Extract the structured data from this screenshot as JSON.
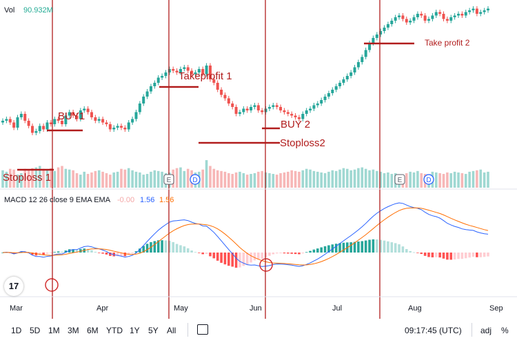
{
  "header": {
    "vol_label": "Vol",
    "vol_value": "90.932M",
    "macd_label": "MACD 12 26 close 9 EMA EMA",
    "macd_hist": "-0.00",
    "macd_line": "1.56",
    "macd_signal": "1.56"
  },
  "logo": "17",
  "bottom_bar": {
    "ranges": [
      "1D",
      "5D",
      "1M",
      "3M",
      "6M",
      "YTD",
      "1Y",
      "5Y",
      "All"
    ],
    "time": "09:17:45 (UTC)",
    "adj": "adj",
    "percent": "%"
  },
  "annotations": {
    "buy1": "BUY1",
    "stoploss1": "Stoploss 1",
    "takeprofit1": "Takeprofit 1",
    "buy2": "BUY 2",
    "stoploss2": "Stoploss2",
    "takeprofit2": "Take profit 2"
  },
  "event_markers": [
    "E",
    "D",
    "E",
    "D"
  ],
  "colors": {
    "up": "#26a69a",
    "down": "#ef5350",
    "annotation": "#b11c1c",
    "macd_line": "#2962ff",
    "signal_line": "#ff6d00"
  },
  "chart_data": {
    "type": "line",
    "x_axis_months": [
      "Mar",
      "Apr",
      "May",
      "Jun",
      "Jul",
      "Aug",
      "Sep"
    ],
    "price_series": [
      30,
      31,
      29,
      26,
      32,
      34,
      30,
      27,
      23,
      24,
      27,
      25,
      29,
      28,
      31,
      30,
      28,
      33,
      35,
      33,
      31,
      36,
      37,
      35,
      32,
      30,
      31,
      29,
      28,
      25,
      26,
      27,
      26,
      25,
      29,
      31,
      35,
      40,
      44,
      47,
      50,
      52,
      55,
      56,
      58,
      60,
      59,
      58,
      60,
      61,
      59,
      57,
      58,
      60,
      57,
      62,
      54,
      52,
      48,
      45,
      43,
      40,
      38,
      34,
      35,
      37,
      36,
      38,
      39,
      36,
      35,
      37,
      38,
      39,
      38,
      36,
      35,
      34,
      33,
      32,
      31,
      34,
      36,
      37,
      39,
      40,
      42,
      44,
      46,
      48,
      50,
      52,
      54,
      56,
      58,
      61,
      64,
      67,
      71,
      75,
      78,
      80,
      82,
      84,
      86,
      88,
      90,
      91,
      89,
      87,
      88,
      90,
      92,
      91,
      88,
      89,
      91,
      93,
      92,
      89,
      88,
      90,
      91,
      92,
      91,
      93,
      94,
      95,
      92,
      93,
      94,
      95
    ],
    "volume": [
      24,
      22,
      26,
      25,
      18,
      20,
      26,
      24,
      27,
      28,
      30,
      26,
      24,
      27,
      23,
      28,
      30,
      26,
      25,
      24,
      20,
      18,
      22,
      19,
      21,
      23,
      24,
      22,
      20,
      18,
      21,
      22,
      26,
      25,
      27,
      24,
      22,
      21,
      18,
      19,
      22,
      24,
      23,
      22,
      20,
      21,
      25,
      27,
      28,
      23,
      26,
      24,
      21,
      22,
      25,
      38,
      30,
      26,
      24,
      23,
      22,
      20,
      19,
      21,
      22,
      20,
      18,
      19,
      20,
      22,
      23,
      21,
      20,
      19,
      18,
      20,
      21,
      22,
      24,
      23,
      22,
      24,
      26,
      25,
      23,
      22,
      21,
      20,
      22,
      24,
      23,
      25,
      27,
      26,
      24,
      25,
      27,
      28,
      26,
      24,
      25,
      23,
      22,
      20,
      21,
      19,
      20,
      18,
      17,
      20,
      22,
      21,
      23,
      20,
      19,
      18,
      22,
      21,
      20,
      19,
      21,
      20,
      22,
      21,
      20,
      19,
      22,
      23,
      24,
      25,
      21,
      22
    ],
    "annotations": [
      {
        "label": "BUY1",
        "month": "Mar",
        "type": "entry"
      },
      {
        "label": "Stoploss 1",
        "month": "Mar",
        "type": "stop"
      },
      {
        "label": "Takeprofit 1",
        "month": "Apr",
        "type": "exit"
      },
      {
        "label": "BUY 2",
        "month": "Jun",
        "type": "entry"
      },
      {
        "label": "Stoploss2",
        "month": "Jun",
        "type": "stop"
      },
      {
        "label": "Take profit 2",
        "month": "Jul",
        "type": "exit"
      }
    ]
  }
}
